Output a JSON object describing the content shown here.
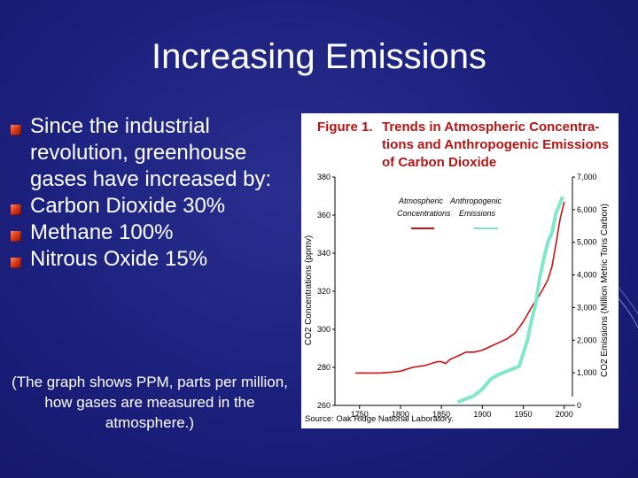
{
  "slide": {
    "title": "Increasing Emissions",
    "bullets": [
      "Since the industrial revolution,  greenhouse gases have increased by:",
      "Carbon Dioxide 30%",
      "Methane   100%",
      "Nitrous Oxide   15%"
    ],
    "caption": "(The graph shows PPM, parts per million, how gases are measured in the atmosphere.)",
    "colors": {
      "background": "#1e2280",
      "bullet": "#e03a1a",
      "text": "#ffffff"
    }
  },
  "chart_data": {
    "type": "line",
    "title_prefix": "Figure 1.",
    "title_lines": [
      "Trends in Atmospheric Concentra-",
      "tions and Anthropogenic Emissions",
      "of Carbon Dioxide"
    ],
    "xlabel": "",
    "ylabel": "CO2 Concentrations (ppmv)",
    "y2label": "CO2 Emissions (Million Metric Tons Carbon)",
    "xlim": [
      1720,
      2010
    ],
    "ylim": [
      260,
      380
    ],
    "y2lim": [
      0,
      7000
    ],
    "xticks": [
      "1750",
      "1800",
      "1850",
      "1900",
      "1950",
      "2000"
    ],
    "yticks": [
      "260",
      "280",
      "300",
      "320",
      "340",
      "360",
      "380"
    ],
    "y2ticks": [
      "0",
      "1,000",
      "2,000",
      "3,000",
      "4,000",
      "5,000",
      "6,000",
      "7,000"
    ],
    "legend_position": "top-left",
    "legend_title": [
      "Atmospheric",
      "Anthropogenic"
    ],
    "series": [
      {
        "name": "Concentrations",
        "axis": "left",
        "color": "#cc1111",
        "x": [
          1745,
          1760,
          1775,
          1790,
          1800,
          1815,
          1830,
          1845,
          1850,
          1855,
          1860,
          1870,
          1880,
          1890,
          1900,
          1910,
          1920,
          1930,
          1940,
          1950,
          1958,
          1965,
          1970,
          1975,
          1980,
          1985,
          1990,
          1995,
          2000
        ],
        "y": [
          277,
          277,
          277,
          277.5,
          278,
          280,
          281,
          283,
          283,
          282,
          284,
          286,
          288,
          288,
          289,
          291,
          293,
          295,
          298,
          304,
          310,
          315,
          318,
          322,
          326,
          333,
          345,
          358,
          367
        ]
      },
      {
        "name": "Emissions",
        "axis": "right",
        "color": "#7ee8c8",
        "x": [
          1870,
          1880,
          1890,
          1900,
          1910,
          1920,
          1930,
          1940,
          1945,
          1950,
          1955,
          1960,
          1965,
          1970,
          1975,
          1980,
          1985,
          1990,
          1995,
          1998
        ],
        "y": [
          100,
          200,
          300,
          500,
          800,
          950,
          1050,
          1150,
          1200,
          1600,
          2000,
          2600,
          3100,
          3900,
          4500,
          5000,
          5300,
          5900,
          6200,
          6400
        ]
      }
    ],
    "source": "Source: Oak Ridge National Laboratory."
  }
}
